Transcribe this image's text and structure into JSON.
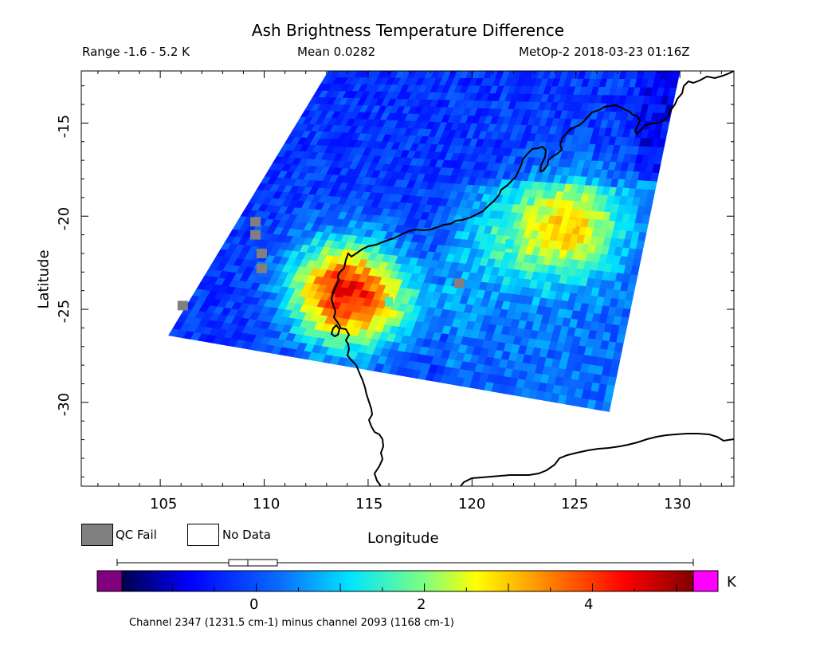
{
  "title": "Ash Brightness Temperature Difference",
  "info": {
    "range": "Range -1.6 - 5.2 K",
    "mean": "Mean 0.0282",
    "satellite_time": "MetOp-2 2018-03-23 01:16Z"
  },
  "axes": {
    "xlabel": "Longitude",
    "ylabel": "Latitude",
    "x_ticks": [
      "105",
      "110",
      "115",
      "120",
      "125",
      "130"
    ],
    "y_ticks": [
      "-15",
      "-20",
      "-25",
      "-30"
    ],
    "xlim": [
      101.2,
      132.6
    ],
    "ylim": [
      -34.5,
      -12.2
    ]
  },
  "legend": {
    "qc_fail": "QC Fail",
    "no_data": "No Data",
    "qc_color": "#808080",
    "no_data_color": "#ffffff"
  },
  "colorbar": {
    "unit": "K",
    "ticks": [
      "0",
      "2",
      "4"
    ],
    "tick_values": [
      0,
      2,
      4
    ],
    "vmin": -1.6,
    "vmax": 5.2,
    "underflow_color": "#800080",
    "overflow_color": "#ff00ff",
    "caption": "Channel 2347 (1231.5 cm-1) minus channel 2093 (1168 cm-1)"
  },
  "swath": {
    "corners_lonlat": [
      [
        113.1,
        -12.2
      ],
      [
        130.0,
        -12.2
      ],
      [
        126.6,
        -30.5
      ],
      [
        105.4,
        -26.4
      ]
    ],
    "hotspots": [
      {
        "lon": 124.8,
        "lat": -20.4,
        "value": 2.8
      },
      {
        "lon": 113.6,
        "lat": -24.1,
        "value": 4.6
      },
      {
        "lon": 116.0,
        "lat": -24.6,
        "value": 1.6
      },
      {
        "lon": 121.8,
        "lat": -21.5,
        "value": 1.2
      }
    ],
    "qc_fail_cells": [
      [
        109.6,
        -20.3
      ],
      [
        109.6,
        -21.0
      ],
      [
        109.9,
        -22.0
      ],
      [
        109.9,
        -22.8
      ],
      [
        106.1,
        -24.8
      ],
      [
        119.4,
        -23.6
      ]
    ]
  }
}
